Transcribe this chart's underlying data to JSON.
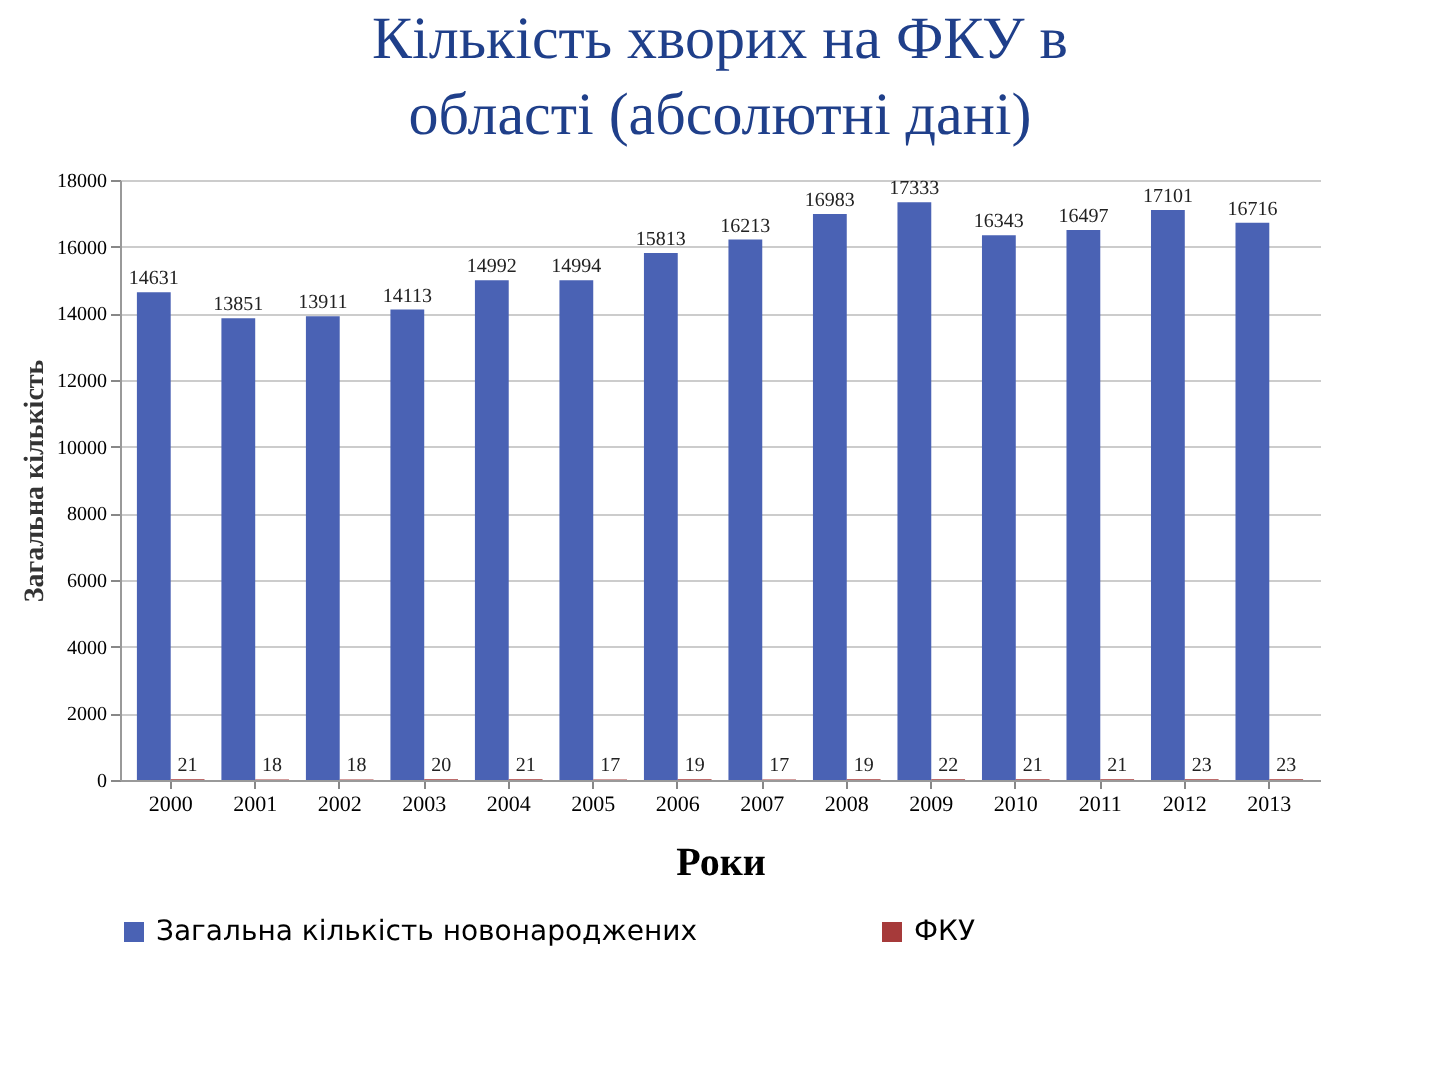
{
  "chart_data": {
    "type": "bar",
    "title": "Кількість хворих на ФКУ в області (абсолютні дані)",
    "xlabel": "Роки",
    "ylabel": "Загальна кількість",
    "categories": [
      "2000",
      "2001",
      "2002",
      "2003",
      "2004",
      "2005",
      "2006",
      "2007",
      "2008",
      "2009",
      "2010",
      "2011",
      "2012",
      "2013"
    ],
    "series": [
      {
        "name": "Загальна кількість новонароджених",
        "color": "#4a62b4",
        "values": [
          14631,
          13851,
          13911,
          14113,
          14992,
          14994,
          15813,
          16213,
          16983,
          17333,
          16343,
          16497,
          17101,
          16716
        ]
      },
      {
        "name": "ФКУ",
        "color": "#a63a3a",
        "values": [
          21,
          18,
          18,
          20,
          21,
          17,
          19,
          17,
          19,
          22,
          21,
          21,
          23,
          23
        ]
      }
    ],
    "ylim": [
      0,
      18000
    ],
    "yticks": [
      0,
      2000,
      4000,
      6000,
      8000,
      10000,
      12000,
      14000,
      16000,
      18000
    ],
    "grid": "y",
    "legend": "bottom",
    "data_labels": true
  }
}
